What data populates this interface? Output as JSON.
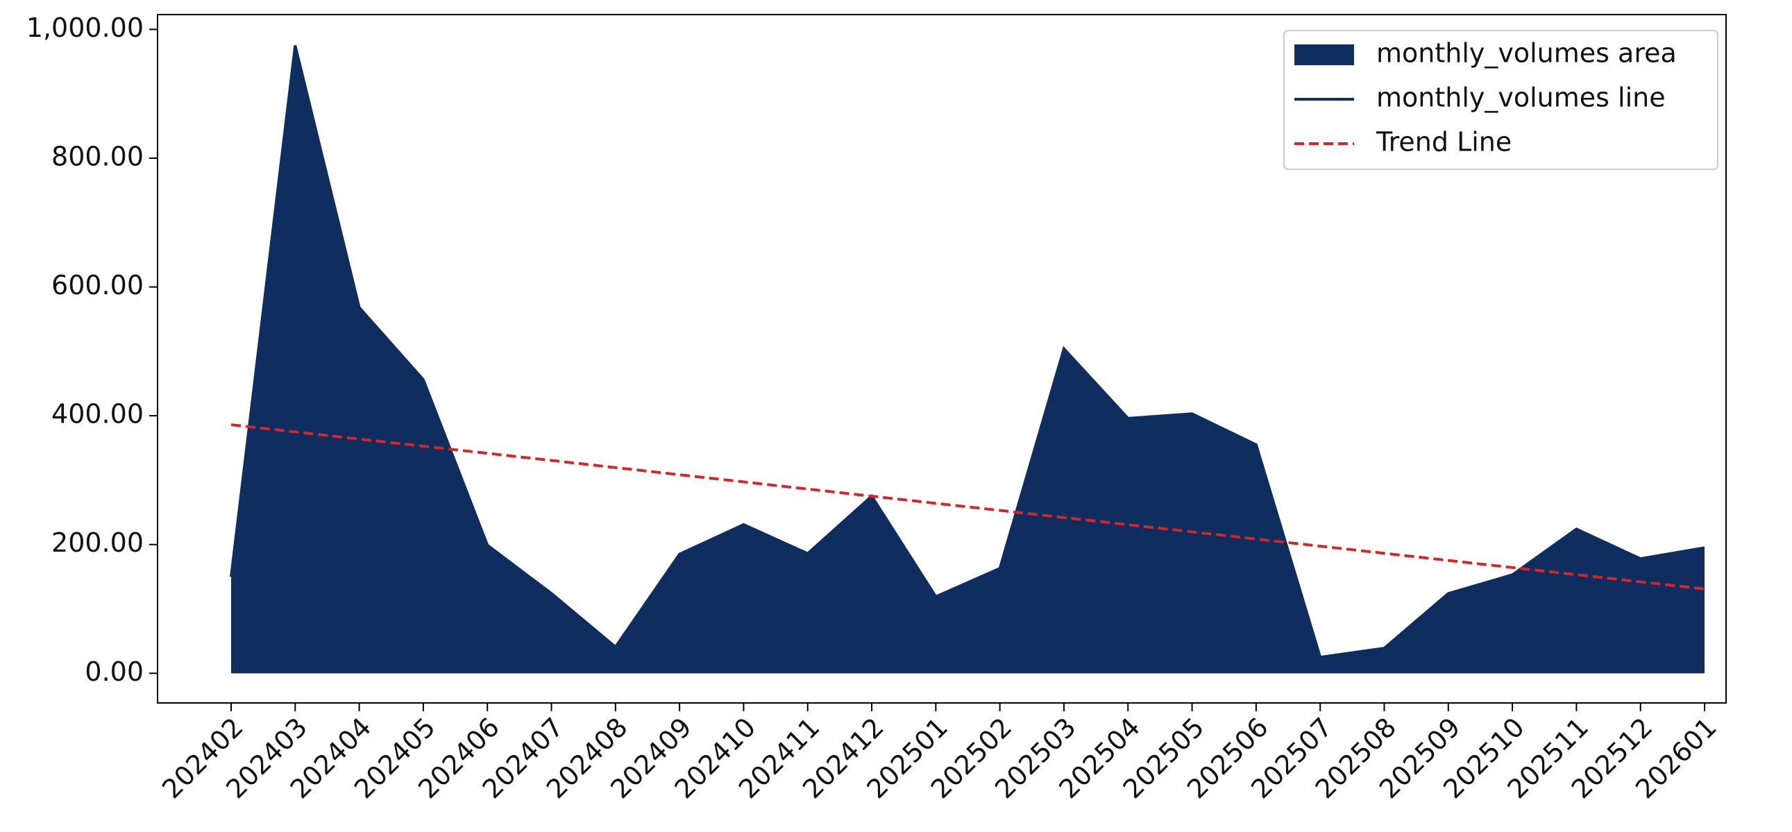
{
  "chart_data": {
    "type": "area-line",
    "categories": [
      "202402",
      "202403",
      "202404",
      "202405",
      "202406",
      "202407",
      "202408",
      "202409",
      "202410",
      "202411",
      "202412",
      "202501",
      "202502",
      "202503",
      "202504",
      "202505",
      "202506",
      "202507",
      "202508",
      "202509",
      "202510",
      "202511",
      "202512",
      "202601"
    ],
    "series": [
      {
        "name": "monthly_volumes area",
        "kind": "area",
        "color": "#0f2d5e",
        "values": [
          150,
          975,
          568,
          456,
          199,
          124,
          41,
          185,
          231,
          186,
          275,
          119,
          163,
          504,
          396,
          403,
          355,
          25,
          39,
          124,
          153,
          224,
          178,
          195
        ]
      },
      {
        "name": "monthly_volumes line",
        "kind": "line",
        "color": "#0f2d5e",
        "values": [
          150,
          975,
          568,
          456,
          199,
          124,
          41,
          185,
          231,
          186,
          275,
          119,
          163,
          504,
          396,
          403,
          355,
          25,
          39,
          124,
          153,
          224,
          178,
          195
        ]
      },
      {
        "name": "Trend Line",
        "kind": "dashed",
        "color": "#d62728",
        "values": [
          386,
          374.9,
          363.8,
          352.7,
          341.7,
          330.6,
          319.5,
          308.4,
          297.3,
          286.2,
          275.1,
          264.0,
          253.0,
          241.9,
          230.8,
          219.7,
          208.6,
          197.5,
          186.4,
          175.3,
          164.3,
          153.2,
          142.1,
          131.0
        ]
      }
    ],
    "ylim": [
      -46,
      1023
    ],
    "yticks": [
      {
        "value": 0,
        "label": "0.00"
      },
      {
        "value": 200,
        "label": "200.00"
      },
      {
        "value": 400,
        "label": "400.00"
      },
      {
        "value": 600,
        "label": "600.00"
      },
      {
        "value": 800,
        "label": "800.00"
      },
      {
        "value": 1000,
        "label": "1,000.00"
      }
    ],
    "legend": "upper right"
  }
}
